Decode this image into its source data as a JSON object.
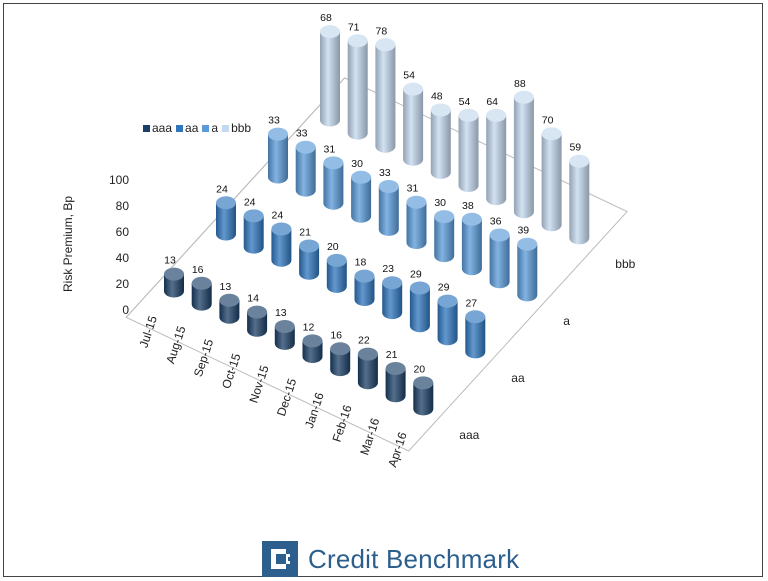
{
  "chart_data": {
    "type": "bar",
    "subtype": "3d-column",
    "ylabel": "Risk Premium, Bp",
    "yticks": [
      0,
      20,
      40,
      60,
      80,
      100
    ],
    "ylim": [
      0,
      100
    ],
    "categories": [
      "Jul-15",
      "Aug-15",
      "Sep-15",
      "Oct-15",
      "Nov-15",
      "Dec-15",
      "Jan-16",
      "Feb-16",
      "Mar-16",
      "Apr-16"
    ],
    "series": [
      {
        "name": "aaa",
        "color": "#1b3f66",
        "values": [
          13,
          16,
          13,
          14,
          13,
          12,
          16,
          22,
          21,
          20
        ]
      },
      {
        "name": "aa",
        "color": "#2f76bd",
        "values": [
          24,
          24,
          24,
          21,
          20,
          18,
          23,
          29,
          29,
          27
        ]
      },
      {
        "name": "a",
        "color": "#5a9ad8",
        "values": [
          33,
          33,
          31,
          30,
          33,
          31,
          30,
          38,
          36,
          39
        ]
      },
      {
        "name": "bbb",
        "color": "#c3d8ee",
        "values": [
          68,
          71,
          78,
          54,
          48,
          54,
          64,
          88,
          70,
          59
        ]
      }
    ],
    "legend_position": "top-left",
    "grid": false
  },
  "branding": {
    "logo_icon": "credit-benchmark-logo",
    "name": "Credit Benchmark",
    "color": "#2c5f8d"
  }
}
